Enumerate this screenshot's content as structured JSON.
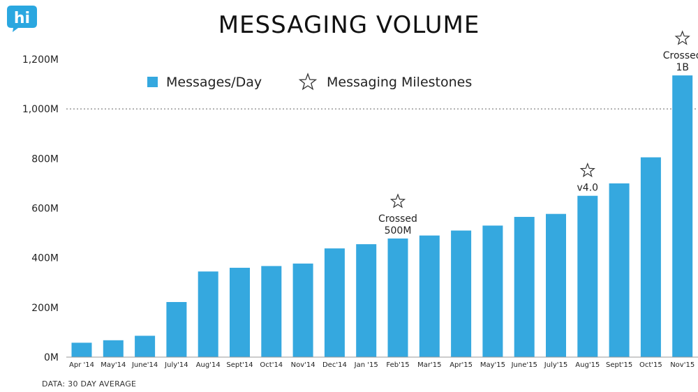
{
  "title": "MESSAGING VOLUME",
  "footnote": "DATA: 30 DAY AVERAGE",
  "logo": {
    "text": "hi",
    "color": "#2aa7e0"
  },
  "colors": {
    "bar": "#35a8df",
    "axis": "#999999",
    "ref_line": "#666666"
  },
  "legend": {
    "items": [
      {
        "label": "Messages/Day",
        "icon": "blue-square"
      },
      {
        "label": "Messaging Milestones",
        "icon": "star-outline-icon"
      }
    ]
  },
  "chart_data": {
    "type": "bar",
    "categories": [
      "Apr '14",
      "May'14",
      "June'14",
      "July'14",
      "Aug'14",
      "Sept'14",
      "Oct'14",
      "Nov'14",
      "Dec'14",
      "Jan '15",
      "Feb'15",
      "Mar'15",
      "Apr'15",
      "May'15",
      "June'15",
      "July'15",
      "Aug'15",
      "Sept'15",
      "Oct'15",
      "Nov'15"
    ],
    "series": [
      {
        "name": "Messages/Day",
        "values": [
          58,
          68,
          86,
          222,
          345,
          360,
          367,
          377,
          438,
          455,
          478,
          490,
          510,
          530,
          565,
          577,
          650,
          700,
          805,
          1135
        ]
      }
    ],
    "ylim": [
      0,
      1200
    ],
    "yticks": [
      0,
      200,
      400,
      600,
      800,
      1000,
      1200
    ],
    "ytick_labels": [
      "0M",
      "200M",
      "400M",
      "600M",
      "800M",
      "1,000M",
      "1,200M"
    ],
    "reference_line": {
      "y": 1000,
      "style": "dotted"
    },
    "milestones": [
      {
        "category": "Feb'15",
        "lines": [
          "Crossed",
          "500M"
        ]
      },
      {
        "category": "Aug'15",
        "lines": [
          "v4.0"
        ]
      },
      {
        "category": "Nov'15",
        "lines": [
          "Crossed",
          "1B"
        ]
      }
    ],
    "grid": false,
    "legend_position": "top-left"
  }
}
